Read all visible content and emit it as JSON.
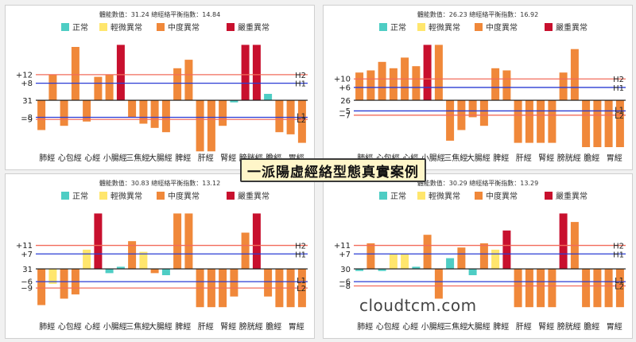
{
  "banner": "一派陽虛經絡型態真實案例",
  "watermark": "cloudtcm.com",
  "colors": {
    "normal": "#4ecdc4",
    "slight": "#ffe66d",
    "moderate": "#f0883a",
    "severe": "#c8102e",
    "h_line": "#2a3bd4",
    "outer_line": "#f26b5b"
  },
  "legend": [
    "正常",
    "輕微異常",
    "中度異常",
    "嚴重異常"
  ],
  "meridians": [
    "肺經",
    "心包經",
    "心經",
    "小腸經",
    "三焦經",
    "大腸經",
    "脾經",
    "肝經",
    "腎經",
    "膀胱經",
    "膽經",
    "胃經"
  ],
  "chart_data": [
    {
      "type": "bar",
      "title": "體能數值：31.24 總經絡平衡指數：14.84",
      "base_label": "31",
      "upper_label": "+12",
      "inner_label": "+8",
      "lower_inner_label": "−8",
      "lower_label": "−9",
      "line_labels": [
        "H2",
        "H1",
        "L1",
        "L2"
      ],
      "x": [
        0.5,
        1,
        1.5,
        2,
        2.5,
        3,
        3.5,
        4,
        4.5,
        5,
        5.5,
        6,
        6.5,
        7,
        7.5,
        8,
        8.5,
        9,
        9.5,
        10,
        10.5,
        11,
        11.5,
        12
      ],
      "values": [
        -14,
        12,
        -12,
        25,
        -10,
        11,
        12,
        26,
        -8,
        -11,
        -13,
        -15,
        15,
        19,
        -24,
        -24,
        -12,
        -1,
        26,
        26,
        3,
        -15,
        -16,
        -20
      ],
      "severity": [
        "moderate",
        "moderate",
        "moderate",
        "moderate",
        "moderate",
        "moderate",
        "moderate",
        "severe",
        "moderate",
        "moderate",
        "moderate",
        "moderate",
        "moderate",
        "moderate",
        "moderate",
        "moderate",
        "moderate",
        "normal",
        "severe",
        "severe",
        "normal",
        "moderate",
        "moderate",
        "moderate"
      ],
      "ylim": [
        -22,
        28
      ],
      "upper": 12,
      "inner": 8,
      "lower_inner": -8,
      "lower": -9
    },
    {
      "type": "bar",
      "title": "體能數值：26.23 總經絡平衡指數：16.92",
      "base_label": "26",
      "upper_label": "+10",
      "inner_label": "+6",
      "lower_inner_label": "−5",
      "lower_label": "−7",
      "line_labels": [
        "H2",
        "H1",
        "L1",
        "L2"
      ],
      "values": [
        13,
        14,
        18,
        15,
        20,
        16,
        26,
        26,
        -19,
        -14,
        -8,
        -12,
        15,
        14,
        -20,
        -20,
        -20,
        -20,
        13,
        24,
        -22,
        -22,
        -22,
        -22
      ],
      "severity": [
        "moderate",
        "moderate",
        "moderate",
        "moderate",
        "moderate",
        "moderate",
        "severe",
        "moderate",
        "moderate",
        "moderate",
        "moderate",
        "moderate",
        "moderate",
        "moderate",
        "moderate",
        "moderate",
        "moderate",
        "moderate",
        "moderate",
        "moderate",
        "moderate",
        "moderate",
        "moderate",
        "moderate"
      ],
      "ylim": [
        -22,
        28
      ],
      "upper": 10,
      "inner": 6,
      "lower_inner": -5,
      "lower": -7
    },
    {
      "type": "bar",
      "title": "體能數值：30.83 總經絡平衡指數：13.12",
      "base_label": "31",
      "upper_label": "+11",
      "inner_label": "+7",
      "lower_inner_label": "−6",
      "lower_label": "−9",
      "line_labels": [
        "H2",
        "H1",
        "L1",
        "L2"
      ],
      "values": [
        -17,
        -7,
        -14,
        -12,
        9,
        26,
        -2,
        1,
        13,
        8,
        -2,
        -3,
        26,
        26,
        -18,
        -18,
        -18,
        -13,
        17,
        26,
        -13,
        -18,
        -18,
        -18
      ],
      "severity": [
        "moderate",
        "slight",
        "moderate",
        "moderate",
        "slight",
        "severe",
        "normal",
        "normal",
        "moderate",
        "slight",
        "moderate",
        "normal",
        "moderate",
        "moderate",
        "moderate",
        "moderate",
        "moderate",
        "moderate",
        "moderate",
        "severe",
        "moderate",
        "moderate",
        "moderate",
        "moderate"
      ],
      "ylim": [
        -22,
        28
      ],
      "upper": 11,
      "inner": 7,
      "lower_inner": -6,
      "lower": -9
    },
    {
      "type": "bar",
      "title": "體能數值：30.29 總經絡平衡指數：13.29",
      "base_label": "30",
      "upper_label": "+11",
      "inner_label": "+7",
      "lower_inner_label": "−6",
      "lower_label": "−8",
      "line_labels": [
        "H2",
        "H1",
        "L1",
        "L2"
      ],
      "values": [
        -1,
        12,
        -1,
        7,
        7,
        1,
        16,
        -14,
        5,
        10,
        -3,
        12,
        9,
        18,
        -18,
        -18,
        -18,
        -18,
        26,
        22,
        -18,
        -18,
        -18,
        -18
      ],
      "severity": [
        "normal",
        "moderate",
        "normal",
        "slight",
        "slight",
        "normal",
        "moderate",
        "moderate",
        "normal",
        "moderate",
        "normal",
        "moderate",
        "slight",
        "severe",
        "moderate",
        "moderate",
        "moderate",
        "moderate",
        "severe",
        "moderate",
        "moderate",
        "moderate",
        "moderate",
        "moderate"
      ],
      "ylim": [
        -22,
        28
      ],
      "upper": 11,
      "inner": 7,
      "lower_inner": -6,
      "lower": -8
    }
  ]
}
